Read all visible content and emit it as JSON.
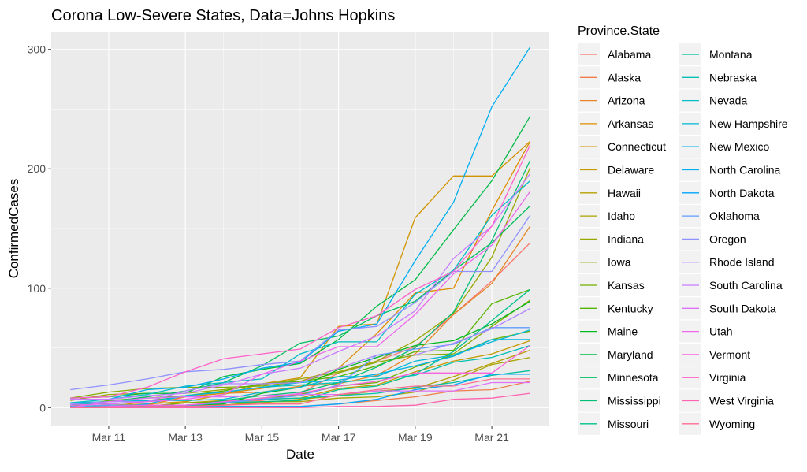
{
  "chart_data": {
    "type": "line",
    "title": "Corona Low-Severe States, Data=Johns Hopkins",
    "xlabel": "Date",
    "ylabel": "ConfirmedCases",
    "x_tick_labels": [
      "Mar 11",
      "Mar 13",
      "Mar 15",
      "Mar 17",
      "Mar 19",
      "Mar 21"
    ],
    "y_ticks": [
      0,
      100,
      200,
      300
    ],
    "x": [
      "Mar 10",
      "Mar 11",
      "Mar 12",
      "Mar 13",
      "Mar 14",
      "Mar 15",
      "Mar 16",
      "Mar 17",
      "Mar 18",
      "Mar 19",
      "Mar 20",
      "Mar 21",
      "Mar 22"
    ],
    "xlim": [
      9.5,
      22.5
    ],
    "ylim": [
      -15,
      315
    ],
    "grid": true,
    "legend": {
      "title": "Province.State",
      "placement": "right"
    },
    "series": [
      {
        "name": "Alabama",
        "color": "#F8766D",
        "values": [
          0,
          0,
          0,
          0,
          5,
          6,
          12,
          29,
          39,
          51,
          78,
          106,
          138
        ]
      },
      {
        "name": "Alaska",
        "color": "#F07E4B",
        "values": [
          0,
          0,
          0,
          0,
          1,
          1,
          1,
          3,
          6,
          9,
          14,
          15,
          22
        ]
      },
      {
        "name": "Arizona",
        "color": "#E88526",
        "values": [
          1,
          1,
          2,
          9,
          12,
          13,
          18,
          20,
          27,
          45,
          78,
          104,
          152
        ]
      },
      {
        "name": "Arkansas",
        "color": "#DC8D00",
        "values": [
          0,
          0,
          6,
          9,
          12,
          16,
          22,
          33,
          62,
          96,
          100,
          165,
          223
        ]
      },
      {
        "name": "Connecticut",
        "color": "#D19300",
        "values": [
          1,
          2,
          3,
          5,
          11,
          20,
          25,
          68,
          70,
          159,
          194,
          194,
          223
        ]
      },
      {
        "name": "Delaware",
        "color": "#C49A00",
        "values": [
          0,
          0,
          1,
          4,
          6,
          7,
          8,
          16,
          19,
          30,
          39,
          45,
          56
        ]
      },
      {
        "name": "Hawaii",
        "color": "#B79F00",
        "values": [
          0,
          0,
          2,
          2,
          2,
          4,
          7,
          10,
          14,
          16,
          26,
          37,
          48
        ]
      },
      {
        "name": "Idaho",
        "color": "#A8A400",
        "values": [
          0,
          0,
          0,
          1,
          2,
          5,
          5,
          8,
          9,
          13,
          23,
          36,
          42
        ]
      },
      {
        "name": "Indiana",
        "color": "#99A800",
        "values": [
          6,
          11,
          12,
          12,
          15,
          19,
          24,
          30,
          39,
          56,
          79,
          126,
          201
        ]
      },
      {
        "name": "Iowa",
        "color": "#87AC00",
        "values": [
          8,
          13,
          16,
          17,
          17,
          18,
          22,
          29,
          38,
          44,
          45,
          68,
          90
        ]
      },
      {
        "name": "Kansas",
        "color": "#72B000",
        "values": [
          1,
          1,
          1,
          4,
          5,
          8,
          11,
          18,
          21,
          34,
          44,
          57,
          64
        ]
      },
      {
        "name": "Kentucky",
        "color": "#53B400",
        "values": [
          1,
          6,
          8,
          10,
          14,
          20,
          22,
          26,
          35,
          47,
          48,
          87,
          99
        ]
      },
      {
        "name": "Maine",
        "color": "#00B81F",
        "values": [
          0,
          0,
          1,
          2,
          3,
          12,
          17,
          32,
          42,
          52,
          56,
          70,
          89
        ]
      },
      {
        "name": "Maryland",
        "color": "#00BA45",
        "values": [
          8,
          9,
          12,
          12,
          26,
          32,
          37,
          57,
          85,
          107,
          149,
          190,
          244
        ]
      },
      {
        "name": "Minnesota",
        "color": "#00BD5C",
        "values": [
          2,
          5,
          9,
          14,
          21,
          35,
          54,
          60,
          77,
          89,
          115,
          138,
          169
        ]
      },
      {
        "name": "Mississippi",
        "color": "#00BF75",
        "values": [
          0,
          0,
          1,
          1,
          6,
          10,
          13,
          21,
          34,
          50,
          80,
          140,
          207
        ]
      },
      {
        "name": "Missouri",
        "color": "#00C08B",
        "values": [
          1,
          1,
          1,
          2,
          4,
          5,
          6,
          15,
          18,
          28,
          47,
          73,
          99
        ]
      },
      {
        "name": "Montana",
        "color": "#00C0A0",
        "values": [
          0,
          0,
          0,
          1,
          5,
          7,
          8,
          10,
          12,
          17,
          21,
          27,
          31
        ]
      },
      {
        "name": "Nebraska",
        "color": "#00BFB4",
        "values": [
          3,
          3,
          5,
          10,
          13,
          17,
          19,
          21,
          24,
          27,
          38,
          42,
          52
        ]
      },
      {
        "name": "Nevada",
        "color": "#00BDC6",
        "values": [
          4,
          7,
          11,
          18,
          21,
          24,
          45,
          55,
          55,
          95,
          115,
          161,
          190
        ]
      },
      {
        "name": "New Hampshire",
        "color": "#00B8D6",
        "values": [
          4,
          5,
          6,
          6,
          7,
          13,
          17,
          26,
          26,
          39,
          44,
          55,
          65
        ]
      },
      {
        "name": "New Mexico",
        "color": "#00B3E5",
        "values": [
          0,
          0,
          3,
          10,
          13,
          17,
          21,
          23,
          28,
          35,
          43,
          57,
          57
        ]
      },
      {
        "name": "North Carolina",
        "color": "#00ADF1",
        "values": [
          7,
          7,
          15,
          17,
          24,
          33,
          38,
          64,
          70,
          123,
          172,
          252,
          302
        ]
      },
      {
        "name": "North Dakota",
        "color": "#00A5FF",
        "values": [
          0,
          0,
          0,
          1,
          1,
          1,
          1,
          3,
          7,
          15,
          19,
          28,
          28
        ]
      },
      {
        "name": "Oklahoma",
        "color": "#619CFF",
        "values": [
          1,
          2,
          2,
          2,
          4,
          7,
          10,
          19,
          44,
          49,
          53,
          67,
          67
        ]
      },
      {
        "name": "Oregon",
        "color": "#8F91FF",
        "values": [
          15,
          19,
          24,
          30,
          32,
          36,
          39,
          65,
          68,
          88,
          114,
          114,
          161
        ]
      },
      {
        "name": "Rhode Island",
        "color": "#B086FF",
        "values": [
          3,
          5,
          5,
          14,
          20,
          20,
          21,
          33,
          44,
          44,
          54,
          66,
          83
        ]
      },
      {
        "name": "South Carolina",
        "color": "#C97CFF",
        "values": [
          7,
          7,
          10,
          12,
          19,
          28,
          33,
          47,
          60,
          81,
          125,
          152,
          196
        ]
      },
      {
        "name": "South Dakota",
        "color": "#DE71F9",
        "values": [
          0,
          5,
          8,
          9,
          9,
          10,
          11,
          11,
          14,
          14,
          14,
          21,
          21
        ]
      },
      {
        "name": "Utah",
        "color": "#ED68ED",
        "values": [
          2,
          3,
          5,
          7,
          11,
          28,
          39,
          51,
          51,
          78,
          112,
          136,
          181
        ]
      },
      {
        "name": "Vermont",
        "color": "#F962DD",
        "values": [
          0,
          1,
          2,
          2,
          5,
          8,
          12,
          18,
          22,
          29,
          29,
          29,
          52
        ]
      },
      {
        "name": "Virginia",
        "color": "#FF61C9",
        "values": [
          8,
          9,
          17,
          30,
          41,
          45,
          49,
          67,
          77,
          99,
          114,
          152,
          220
        ]
      },
      {
        "name": "West Virginia",
        "color": "#FF64B0",
        "values": [
          0,
          0,
          0,
          0,
          0,
          0,
          0,
          1,
          1,
          2,
          7,
          8,
          12
        ]
      },
      {
        "name": "Wyoming",
        "color": "#FF6C91",
        "values": [
          0,
          0,
          1,
          1,
          2,
          3,
          3,
          11,
          15,
          18,
          18,
          24,
          24
        ]
      }
    ]
  }
}
